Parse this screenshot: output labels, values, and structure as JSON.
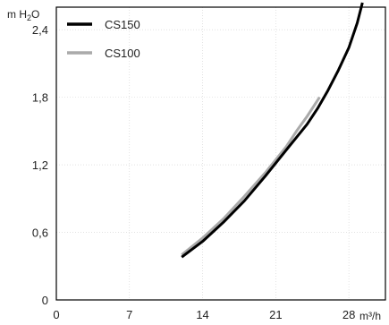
{
  "chart_data": {
    "type": "line",
    "title": "",
    "xlabel": "",
    "ylabel": "",
    "x_unit_label": "m³/h",
    "y_unit_label": {
      "main": "m H",
      "sub": "2",
      "tail": "O"
    },
    "xlim": [
      0,
      31.5
    ],
    "ylim": [
      0,
      2.6
    ],
    "x_ticks": [
      0,
      7,
      14,
      21,
      28
    ],
    "x_tick_labels": [
      "0",
      "7",
      "14",
      "21",
      "28"
    ],
    "y_ticks": [
      0,
      0.6,
      1.2,
      1.8,
      2.4
    ],
    "y_tick_labels": [
      "0",
      "0,6",
      "1,2",
      "1,8",
      "2,4"
    ],
    "grid": true,
    "legend_position": "top-left",
    "series": [
      {
        "name": "CS150",
        "color": "#000000",
        "points": [
          [
            12,
            0.38
          ],
          [
            14,
            0.52
          ],
          [
            16,
            0.69
          ],
          [
            18,
            0.88
          ],
          [
            20,
            1.1
          ],
          [
            22,
            1.33
          ],
          [
            24,
            1.56
          ],
          [
            25,
            1.7
          ],
          [
            26,
            1.86
          ],
          [
            27,
            2.04
          ],
          [
            28,
            2.24
          ],
          [
            28.8,
            2.46
          ],
          [
            29.3,
            2.64
          ]
        ]
      },
      {
        "name": "CS100",
        "color": "#aaaaaa",
        "points": [
          [
            12,
            0.4
          ],
          [
            14,
            0.55
          ],
          [
            16,
            0.72
          ],
          [
            18,
            0.92
          ],
          [
            20,
            1.13
          ],
          [
            22,
            1.36
          ],
          [
            23,
            1.5
          ],
          [
            24,
            1.63
          ],
          [
            25.2,
            1.8
          ]
        ]
      }
    ]
  }
}
